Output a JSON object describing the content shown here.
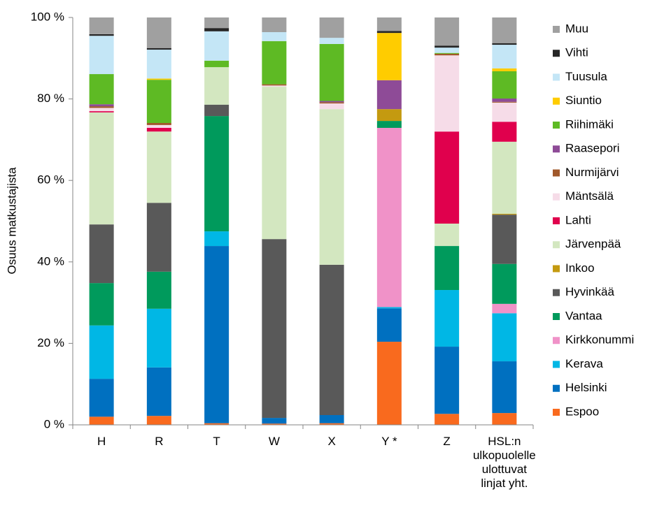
{
  "chart_data": {
    "type": "stacked_bar",
    "y_label": "Osuus matkustajista",
    "categories": [
      "H",
      "R",
      "T",
      "W",
      "X",
      "Y *",
      "Z",
      "HSL:n ulkopuolelle ulottuvat linjat yht."
    ],
    "ylim": [
      0,
      100
    ],
    "yticks": [
      {
        "value": 0,
        "label": "0 %"
      },
      {
        "value": 20,
        "label": "20 %"
      },
      {
        "value": 40,
        "label": "40 %"
      },
      {
        "value": 60,
        "label": "60 %"
      },
      {
        "value": 80,
        "label": "80 %"
      },
      {
        "value": 100,
        "label": "100 %"
      }
    ],
    "series": [
      {
        "name": "Espoo",
        "color": "#f96a1e",
        "values": [
          2.0,
          2.2,
          0.4,
          0.3,
          0.4,
          20.4,
          2.7,
          2.9
        ]
      },
      {
        "name": "Helsinki",
        "color": "#0070c0",
        "values": [
          9.3,
          11.9,
          43.5,
          1.4,
          2.0,
          8.2,
          16.5,
          12.7
        ]
      },
      {
        "name": "Kerava",
        "color": "#00b7e5",
        "values": [
          13.1,
          14.4,
          3.6,
          0,
          0,
          0.3,
          13.9,
          11.8
        ]
      },
      {
        "name": "Kirkkonummi",
        "color": "#f092c8",
        "values": [
          0,
          0,
          0,
          0,
          0,
          44.0,
          0,
          2.3
        ]
      },
      {
        "name": "Vantaa",
        "color": "#009a5c",
        "values": [
          10.4,
          9.1,
          28.3,
          0,
          0,
          1.7,
          10.8,
          9.8
        ]
      },
      {
        "name": "Hyvinkää",
        "color": "#595959",
        "values": [
          14.4,
          16.9,
          2.8,
          43.9,
          36.9,
          0,
          0,
          12.1
        ]
      },
      {
        "name": "Inkoo",
        "color": "#c49a10",
        "values": [
          0,
          0,
          0,
          0,
          0,
          2.9,
          0,
          0.2
        ]
      },
      {
        "name": "Järvenpää",
        "color": "#d3e7c0",
        "values": [
          27.5,
          17.5,
          9.2,
          37.4,
          38.2,
          0,
          5.5,
          17.7
        ]
      },
      {
        "name": "Lahti",
        "color": "#e0004d",
        "values": [
          0.3,
          0.9,
          0,
          0,
          0,
          0,
          22.6,
          4.9
        ]
      },
      {
        "name": "Mäntsälä",
        "color": "#f6dce8",
        "values": [
          0.8,
          0.7,
          0,
          0.3,
          1.4,
          0,
          18.7,
          4.7
        ]
      },
      {
        "name": "Nurmijärvi",
        "color": "#a0582a",
        "values": [
          0.4,
          0.5,
          0,
          0.3,
          0.3,
          0,
          0.4,
          0.2
        ]
      },
      {
        "name": "Raasepori",
        "color": "#8e4b97",
        "values": [
          0.5,
          0,
          0,
          0,
          0.3,
          7.1,
          0,
          0.8
        ]
      },
      {
        "name": "Riihimäki",
        "color": "#5eba24",
        "values": [
          7.4,
          10.6,
          1.6,
          10.6,
          14.0,
          0,
          0.2,
          6.7
        ]
      },
      {
        "name": "Siuntio",
        "color": "#ffcc00",
        "values": [
          0,
          0.3,
          0,
          0,
          0,
          11.6,
          0,
          0.7
        ]
      },
      {
        "name": "Tuusula",
        "color": "#c4e6f6",
        "values": [
          9.4,
          7.1,
          7.2,
          2.2,
          1.5,
          0,
          1.3,
          5.8
        ]
      },
      {
        "name": "Vihti",
        "color": "#262626",
        "values": [
          0.4,
          0.4,
          0.8,
          0,
          0,
          0.5,
          0.5,
          0.4
        ]
      },
      {
        "name": "Muu",
        "color": "#a0a0a0",
        "values": [
          4.1,
          7.5,
          2.6,
          3.6,
          5.0,
          3.3,
          6.9,
          6.3
        ]
      }
    ]
  }
}
